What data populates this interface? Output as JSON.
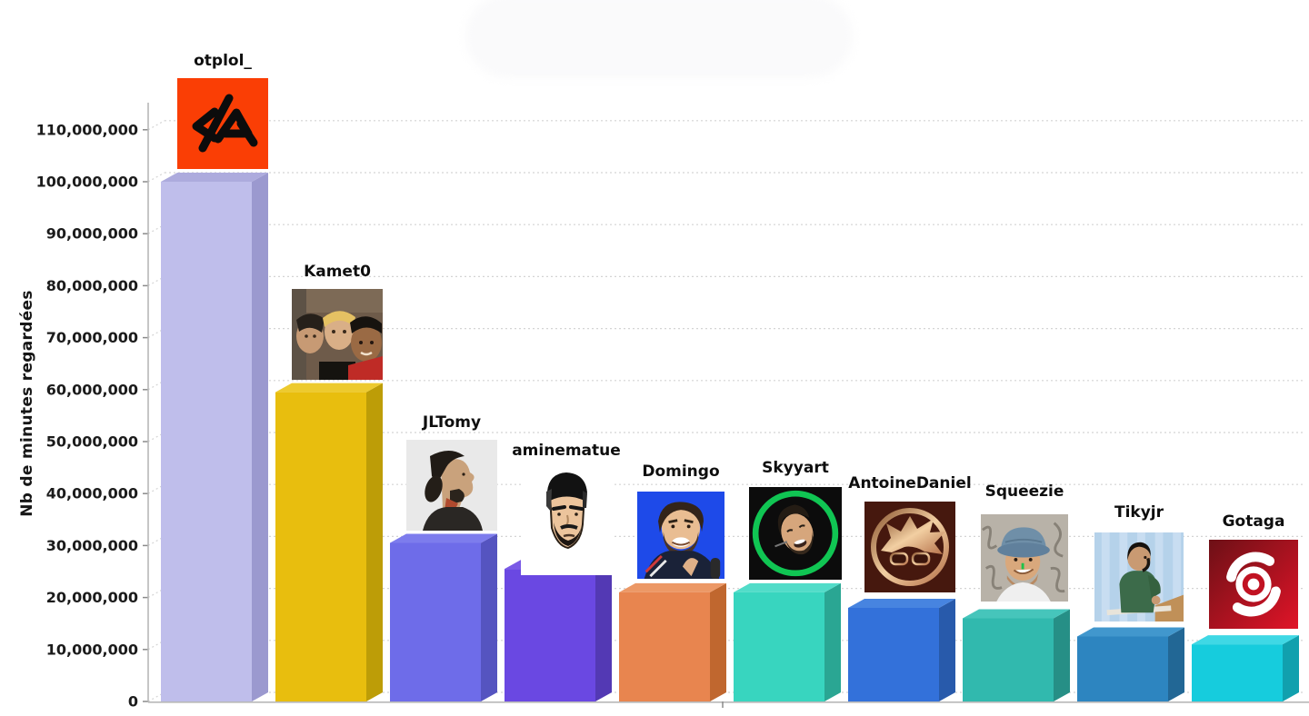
{
  "chart_data": {
    "type": "bar",
    "title": "",
    "xlabel": "",
    "ylabel": "Nb de minutes regardées",
    "ylim": [
      0,
      115000000
    ],
    "grid": "dotted-horizontal",
    "legend": "none",
    "style": "3d-bars, one color per bar, streamer avatar above each bar",
    "categories": [
      "otplol_",
      "Kamet0",
      "JLTomy",
      "aminematue",
      "Domingo",
      "Skyyart",
      "AntoineDaniel",
      "Squeezie",
      "Tikyjr",
      "Gotaga"
    ],
    "values": [
      100000000,
      59500000,
      30500000,
      25500000,
      21000000,
      21000000,
      18000000,
      16000000,
      12500000,
      11000000
    ],
    "y_ticks": [
      0,
      10000000,
      20000000,
      30000000,
      40000000,
      50000000,
      60000000,
      70000000,
      80000000,
      90000000,
      100000000,
      110000000
    ],
    "y_tick_labels": [
      "0",
      "10,000,000",
      "20,000,000",
      "30,000,000",
      "40,000,000",
      "50,000,000",
      "60,000,000",
      "70,000,000",
      "80,000,000",
      "90,000,000",
      "100,000,000",
      "110,000,000"
    ],
    "bars": [
      {
        "key": "otplol",
        "avatar_icon": "otplol-logo-icon",
        "front": "#bfbeeb",
        "top": "#adabdd",
        "side": "#9b99cf"
      },
      {
        "key": "kamet0",
        "avatar_icon": "kamet0-photo-icon",
        "front": "#e8be0e",
        "top": "#edca2e",
        "side": "#bd9d07"
      },
      {
        "key": "jltomy",
        "avatar_icon": "jltomy-photo-icon",
        "front": "#6e6ce9",
        "top": "#7d7ced",
        "side": "#5554c0"
      },
      {
        "key": "aminematue",
        "avatar_icon": "aminematue-cartoon-icon",
        "front": "#6a48e2",
        "top": "#7a5ae6",
        "side": "#5339b4"
      },
      {
        "key": "domingo",
        "avatar_icon": "domingo-photo-icon",
        "front": "#e8854f",
        "top": "#ec9866",
        "side": "#c0672f"
      },
      {
        "key": "skyyart",
        "avatar_icon": "skyyart-photo-icon",
        "front": "#38d5bf",
        "top": "#52dcc9",
        "side": "#2aa693"
      },
      {
        "key": "antoinedaniel",
        "avatar_icon": "antoinedaniel-logo-icon",
        "front": "#3371da",
        "top": "#4784e0",
        "side": "#285aab"
      },
      {
        "key": "squeezie",
        "avatar_icon": "squeezie-photo-icon",
        "front": "#31b9ae",
        "top": "#46c5bb",
        "side": "#268f86"
      },
      {
        "key": "tikyjr",
        "avatar_icon": "tikyjr-photo-icon",
        "front": "#2d85c0",
        "top": "#4197cd",
        "side": "#226795"
      },
      {
        "key": "gotaga",
        "avatar_icon": "gotaga-logo-icon",
        "front": "#16ccdd",
        "top": "#3fd8e5",
        "side": "#11a0ae"
      }
    ],
    "colors": {
      "background": "#ffffff",
      "gridline": "#d4d4d4",
      "axis": "#b8b8b8",
      "tick": "#8a8a8a",
      "tick_text": "#1b1b1b",
      "erased_title_area": "#fafafb"
    }
  }
}
